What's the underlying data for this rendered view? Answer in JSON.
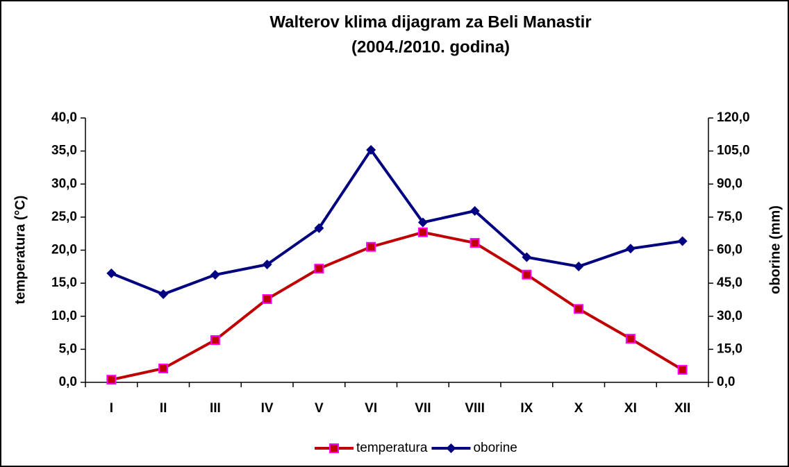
{
  "chart_data": {
    "type": "line",
    "title": "Walterov klima dijagram za Beli Manastir",
    "subtitle": "(2004./2010. godina)",
    "y_label": "temperatura (°C)",
    "y2_label": "oborine (mm)",
    "categories": [
      "I",
      "II",
      "III",
      "IV",
      "V",
      "VI",
      "VII",
      "VIII",
      "IX",
      "X",
      "XI",
      "XII"
    ],
    "series": [
      {
        "name": "temperatura",
        "color": "#c00000",
        "marker_edge": "#ff00ff",
        "marker": "square",
        "values": [
          0.4,
          2.1,
          6.4,
          12.6,
          17.2,
          20.5,
          22.7,
          21.1,
          16.3,
          11.1,
          6.6,
          1.9
        ]
      },
      {
        "name": "oborine",
        "color": "#000080",
        "marker": "diamond",
        "axis": "y2",
        "values": [
          49.5,
          40.0,
          48.8,
          53.5,
          70.0,
          105.5,
          72.6,
          77.8,
          56.8,
          52.6,
          60.7,
          64.1
        ]
      }
    ],
    "ylim": [
      0,
      40
    ],
    "yticks": [
      {
        "value": 0,
        "label": "0,0"
      },
      {
        "value": 5,
        "label": "5,0"
      },
      {
        "value": 10,
        "label": "10,0"
      },
      {
        "value": 15,
        "label": "15,0"
      },
      {
        "value": 20,
        "label": "20,0"
      },
      {
        "value": 25,
        "label": "25,0"
      },
      {
        "value": 30,
        "label": "30,0"
      },
      {
        "value": 35,
        "label": "35,0"
      },
      {
        "value": 40,
        "label": "40,0"
      }
    ],
    "y2lim": [
      0,
      120
    ],
    "y2ticks": [
      {
        "value": 0,
        "label": "0,0"
      },
      {
        "value": 15,
        "label": "15,0"
      },
      {
        "value": 30,
        "label": "30,0"
      },
      {
        "value": 45,
        "label": "45,0"
      },
      {
        "value": 60,
        "label": "60,0"
      },
      {
        "value": 75,
        "label": "75,0"
      },
      {
        "value": 90,
        "label": "90,0"
      },
      {
        "value": 105,
        "label": "105,0"
      },
      {
        "value": 120,
        "label": "120,0"
      }
    ],
    "grid": false,
    "legend": "bottom"
  }
}
